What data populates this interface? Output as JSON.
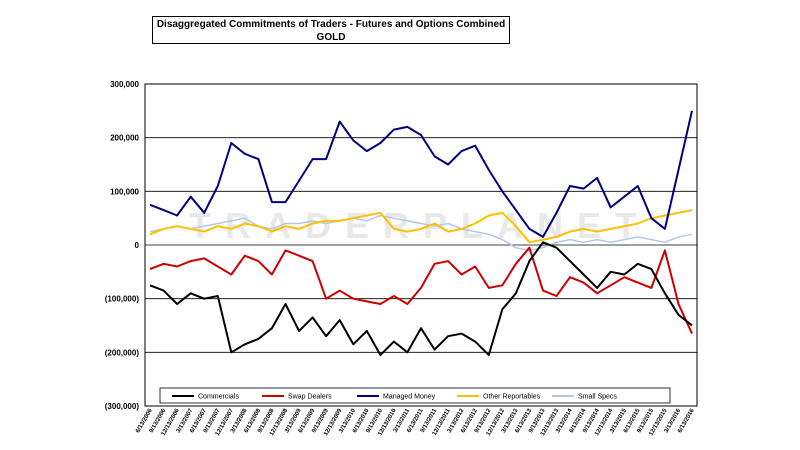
{
  "chart_data": {
    "type": "line",
    "title": "Disaggregated Commitments of Traders - Futures and Options Combined",
    "subtitle": "GOLD",
    "watermark": "TRADERPLANET",
    "ylim": [
      -300000,
      300000
    ],
    "y_ticks": [
      300000,
      200000,
      100000,
      0,
      -100000,
      -200000,
      -300000
    ],
    "y_tick_labels": [
      "300,000",
      "200,000",
      "100,000",
      "0",
      "(100,000)",
      "(200,000)",
      "(300,000)"
    ],
    "x_tick_labels": [
      "6/13/2006",
      "9/13/2006",
      "12/13/2006",
      "3/13/2007",
      "6/13/2007",
      "9/13/2007",
      "12/13/2007",
      "3/13/2008",
      "6/13/2008",
      "9/13/2008",
      "12/13/2008",
      "3/13/2009",
      "6/13/2009",
      "9/13/2009",
      "12/13/2009",
      "3/13/2010",
      "6/13/2010",
      "9/13/2010",
      "12/13/2010",
      "3/13/2011",
      "6/13/2011",
      "9/13/2011",
      "12/13/2011",
      "3/13/2012",
      "6/13/2012",
      "9/13/2012",
      "12/13/2012",
      "3/13/2013",
      "6/13/2013",
      "9/13/2013",
      "12/13/2013",
      "3/13/2014",
      "6/13/2014",
      "9/13/2014",
      "12/13/2014",
      "3/13/2015",
      "6/13/2015",
      "9/13/2015",
      "12/13/2015",
      "3/13/2016",
      "6/13/2016"
    ],
    "grid": true,
    "legend_position": "bottom",
    "series": [
      {
        "name": "Commercials",
        "color": "#000000",
        "values": [
          -75000,
          -85000,
          -110000,
          -90000,
          -100000,
          -95000,
          -200000,
          -185000,
          -175000,
          -155000,
          -110000,
          -160000,
          -135000,
          -170000,
          -140000,
          -185000,
          -160000,
          -205000,
          -180000,
          -200000,
          -155000,
          -195000,
          -170000,
          -165000,
          -180000,
          -205000,
          -120000,
          -90000,
          -30000,
          5000,
          -5000,
          -30000,
          -55000,
          -80000,
          -50000,
          -55000,
          -35000,
          -45000,
          -90000,
          -130000,
          -150000
        ]
      },
      {
        "name": "Swap Dealers",
        "color": "#cc0000",
        "values": [
          -45000,
          -35000,
          -40000,
          -30000,
          -25000,
          -40000,
          -55000,
          -20000,
          -30000,
          -55000,
          -10000,
          -20000,
          -30000,
          -100000,
          -85000,
          -100000,
          -105000,
          -110000,
          -95000,
          -110000,
          -80000,
          -35000,
          -30000,
          -55000,
          -40000,
          -80000,
          -75000,
          -35000,
          -5000,
          -85000,
          -95000,
          -60000,
          -70000,
          -90000,
          -75000,
          -60000,
          -70000,
          -80000,
          -10000,
          -110000,
          -165000
        ]
      },
      {
        "name": "Managed Money",
        "color": "#000080",
        "values": [
          75000,
          65000,
          55000,
          90000,
          60000,
          110000,
          190000,
          170000,
          160000,
          80000,
          80000,
          120000,
          160000,
          160000,
          230000,
          195000,
          175000,
          190000,
          215000,
          220000,
          205000,
          165000,
          150000,
          175000,
          185000,
          140000,
          100000,
          65000,
          30000,
          15000,
          60000,
          110000,
          105000,
          125000,
          70000,
          90000,
          110000,
          50000,
          30000,
          140000,
          250000
        ]
      },
      {
        "name": "Other Reportables",
        "color": "#ffc000",
        "values": [
          20000,
          30000,
          35000,
          30000,
          25000,
          35000,
          30000,
          40000,
          35000,
          25000,
          35000,
          30000,
          40000,
          45000,
          45000,
          50000,
          55000,
          60000,
          30000,
          25000,
          30000,
          40000,
          25000,
          30000,
          40000,
          55000,
          60000,
          35000,
          5000,
          10000,
          15000,
          25000,
          30000,
          25000,
          30000,
          35000,
          40000,
          50000,
          55000,
          60000,
          65000
        ]
      },
      {
        "name": "Small Specs",
        "color": "#b4c7e7",
        "values": [
          25000,
          30000,
          35000,
          30000,
          35000,
          40000,
          45000,
          50000,
          35000,
          30000,
          40000,
          40000,
          45000,
          40000,
          45000,
          50000,
          45000,
          55000,
          50000,
          45000,
          40000,
          35000,
          40000,
          30000,
          25000,
          20000,
          10000,
          -5000,
          -10000,
          -5000,
          5000,
          10000,
          5000,
          10000,
          5000,
          10000,
          15000,
          10000,
          5000,
          15000,
          20000
        ]
      }
    ]
  }
}
